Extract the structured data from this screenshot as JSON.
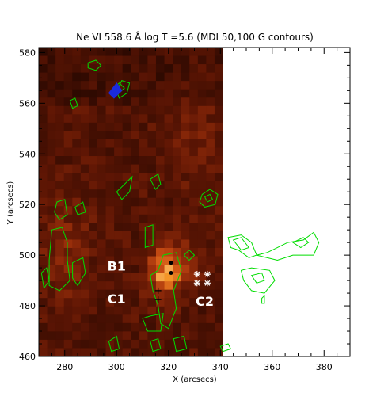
{
  "chart_data": {
    "type": "heatmap",
    "title": "Ne VI  558.6 Å log T =5.6 (MDI 50,100 G contours)",
    "xlabel": "X (arcsecs)",
    "ylabel": "Y (arcsecs)",
    "xlim": [
      270,
      390
    ],
    "ylim": [
      460,
      582
    ],
    "xticks": [
      280,
      300,
      320,
      340,
      360,
      380
    ],
    "yticks": [
      460,
      480,
      500,
      520,
      540,
      560,
      580
    ],
    "image_extent": {
      "x": [
        270,
        341
      ],
      "y": [
        460,
        582
      ]
    },
    "grid": false,
    "colormap": "red-temperature (black-red-orange-white)",
    "contour_color": "#00dd00",
    "contour_levels_gauss": [
      50,
      100
    ],
    "labels": [
      {
        "text": "B1",
        "x": 300,
        "y": 494
      },
      {
        "text": "C1",
        "x": 300,
        "y": 481
      },
      {
        "text": "C2",
        "x": 334,
        "y": 480
      }
    ],
    "markers": [
      {
        "symbol": "*",
        "x": 331,
        "y": 492.5,
        "color": "#ffffff"
      },
      {
        "symbol": "*",
        "x": 335,
        "y": 492.5,
        "color": "#ffffff"
      },
      {
        "symbol": "*",
        "x": 331,
        "y": 489,
        "color": "#ffffff"
      },
      {
        "symbol": "*",
        "x": 335,
        "y": 489,
        "color": "#ffffff"
      },
      {
        "symbol": "+",
        "x": 316,
        "y": 486,
        "color": "#000000"
      },
      {
        "symbol": "+",
        "x": 316,
        "y": 482.5,
        "color": "#000000"
      },
      {
        "symbol": "dot",
        "x": 321,
        "y": 497,
        "color": "#000000"
      },
      {
        "symbol": "dot",
        "x": 321,
        "y": 493,
        "color": "#000000"
      }
    ]
  }
}
